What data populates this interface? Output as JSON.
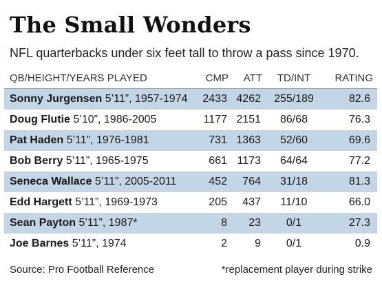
{
  "title": "The Small Wonders",
  "subtitle": "NFL quarterbacks under six feet tall to throw a pass since 1970.",
  "columns": {
    "qb": "QB/HEIGHT/YEARS PLAYED",
    "cmp": "CMP",
    "att": "ATT",
    "tdint": "TD/INT",
    "rating": "RATING"
  },
  "rows": [
    {
      "name": "Sonny Jurgensen",
      "detail": " 5’11”, 1957-1974",
      "cmp": "2433",
      "att": "4262",
      "tdint": "255/189",
      "rating": "82.6"
    },
    {
      "name": "Doug Flutie",
      "detail": " 5’10”, 1986-2005",
      "cmp": "1177",
      "att": "2151",
      "tdint": "86/68",
      "rating": "76.3"
    },
    {
      "name": "Pat Haden",
      "detail": " 5’11”, 1976-1981",
      "cmp": "731",
      "att": "1363",
      "tdint": "52/60",
      "rating": "69.6"
    },
    {
      "name": "Bob Berry",
      "detail": " 5’11”, 1965-1975",
      "cmp": "661",
      "att": "1173",
      "tdint": "64/64",
      "rating": "77.2"
    },
    {
      "name": "Seneca Wallace",
      "detail": " 5’11”, 2005-2011",
      "cmp": "452",
      "att": "764",
      "tdint": "31/18",
      "rating": "81.3"
    },
    {
      "name": "Edd Hargett",
      "detail": " 5’11”, 1969-1973",
      "cmp": "205",
      "att": "437",
      "tdint": "11/10",
      "rating": "66.0"
    },
    {
      "name": "Sean Payton",
      "detail": " 5’11”, 1987*",
      "cmp": "8",
      "att": "23",
      "tdint": "0/1",
      "rating": "27.3"
    },
    {
      "name": "Joe Barnes",
      "detail": " 5’11”, 1974",
      "cmp": "2",
      "att": "9",
      "tdint": "0/1",
      "rating": "0.9"
    }
  ],
  "source": "Source: Pro Football Reference",
  "note": "*replacement player during strike",
  "colors": {
    "row_shade": "#c4d5e6",
    "header_rule": "#9fa7ad"
  }
}
